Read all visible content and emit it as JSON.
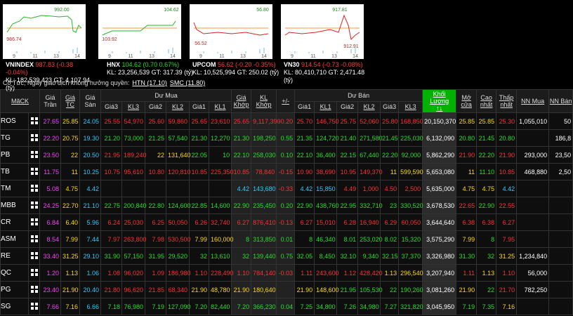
{
  "indices": [
    {
      "name": "VNINDEX",
      "quote": "987.83 (-0.38 -0.04%)",
      "color": "#ff3b3b",
      "volume": "KL: 182,539,423",
      "value": "GT: 4,107.94 (tỷ)",
      "chart_high": "992.00",
      "chart_low": "986.74"
    },
    {
      "name": "HNX",
      "quote": "104.62 (0.70 0.67%)",
      "color": "#22dd22",
      "volume": "KL: 23,256,539",
      "value": "GT: 317.39 (tỷ)",
      "chart_high": "104.62",
      "chart_low": "103.92"
    },
    {
      "name": "UPCOM",
      "quote": "56.62 (-0.20 -0.35%)",
      "color": "#ff3b3b",
      "volume": "KL: 10,525,994",
      "value": "GT: 250.02 (tỷ)",
      "chart_high": "56.80",
      "chart_low": "56.52"
    },
    {
      "name": "VN30",
      "quote": "914.54 (-0.73 -0.08%)",
      "color": "#ff3b3b",
      "volume": "KL: 80,410,710",
      "value": "GT: 2,471.48 (tỷ)",
      "chart_high": "917.81",
      "chart_low": "912.91"
    }
  ],
  "chart_ticks": [
    "9",
    "11",
    "13",
    "14"
  ],
  "notice": {
    "label": "Cổ Tức, Ngày giao dịch không hưởng quyền:",
    "links": [
      "HTN (17.10)",
      "SMC (11.80)"
    ]
  },
  "table": {
    "header": {
      "ticker": "MãCK",
      "ceiling": "Giá Trần",
      "reference": "Giá TC",
      "floor": "Giá Sàn",
      "buy": "Dư Mua",
      "sell": "Dư Bán",
      "buy_columns": [
        "Giá3",
        "KL3",
        "Giá2",
        "KL2",
        "Giá1",
        "KL1"
      ],
      "match_columns": [
        "Giá Khớp",
        "KL Khớp",
        "+/-"
      ],
      "sell_columns": [
        "Giá1",
        "KL1",
        "Giá2",
        "KL2",
        "Giá3",
        "KL3"
      ],
      "total": "Khối Lượng",
      "sort": "↑↓",
      "stat_columns": [
        "Mở cửa",
        "Cao nhất",
        "Thấp nhất",
        "NN Mua",
        "NN Bán"
      ]
    },
    "rows": [
      [
        "ROS",
        "27.65",
        "25.85",
        "24.05",
        "25.55",
        "54,970",
        "25.60",
        "59,860",
        "25.65",
        "23,610",
        "25.65",
        "9,117,390",
        "-0.20",
        "25.70",
        "146,750",
        "25.75",
        "52,060",
        "25.80",
        "168,850",
        "20,150,370",
        "25.85",
        "25.85",
        "25.30",
        "1,055,010",
        "50"
      ],
      [
        "TG",
        "22.20",
        "20.75",
        "19.30",
        "21.20",
        "73,000",
        "21.25",
        "57,540",
        "21.30",
        "12,270",
        "21.30",
        "198,250",
        "0.55",
        "21.35",
        "124,720",
        "21.40",
        "271,580",
        "21.45",
        "225,030",
        "6,132,090",
        "20.80",
        "21.45",
        "20.80",
        null,
        "186,8"
      ],
      [
        "PB",
        "23.50",
        "22",
        "20.50",
        "21.95",
        "189,240",
        "22",
        "131,640",
        "22.05",
        "10",
        "22.10",
        "258,030",
        "0.10",
        "22.10",
        "36,400",
        "22.15",
        "67,440",
        "22.20",
        "92,000",
        "5,862,290",
        "21.90",
        "22.20",
        "21.90",
        "293,000",
        "23,50"
      ],
      [
        "TB",
        "11.75",
        "11",
        "10.25",
        "10.75",
        "95,610",
        "10.80",
        "120,810",
        "10.85",
        "225,350",
        "10.85",
        "78,840",
        "-0.15",
        "10.90",
        "38,690",
        "10.95",
        "149,370",
        "11",
        "599,590",
        "5,653,080",
        "11",
        "11.10",
        "10.85",
        "468,880",
        "2,50"
      ],
      [
        "TM",
        "5.08",
        "4.75",
        "4.42",
        null,
        null,
        null,
        null,
        null,
        null,
        "4.42",
        "143,680",
        "-0.33",
        "4.42",
        "15,850",
        "4.49",
        "1,000",
        "4.50",
        "2,500",
        "5,635,000",
        "4.75",
        "4.75",
        "4.42",
        null,
        null
      ],
      [
        "MBB",
        "24.25",
        "22.70",
        "21.10",
        "22.75",
        "200,840",
        "22.80",
        "124,600",
        "22.85",
        "14,600",
        "22.90",
        "235,450",
        "0.20",
        "22.90",
        "438,760",
        "22.95",
        "332,710",
        "23",
        "330,520",
        "3,678,530",
        "22.65",
        "22.90",
        "22.55",
        null,
        null
      ],
      [
        "CR",
        "6.84",
        "6.40",
        "5.96",
        "6.24",
        "25,030",
        "6.25",
        "50,050",
        "6.26",
        "32,740",
        "6.27",
        "876,410",
        "-0.13",
        "6.27",
        "15,010",
        "6.28",
        "16,940",
        "6.29",
        "60,050",
        "3,644,640",
        "6.38",
        "6.38",
        "6.27",
        null,
        null
      ],
      [
        "ASM",
        "8.54",
        "7.99",
        "7.44",
        "7.97",
        "263,800",
        "7.98",
        "530,500",
        "7.99",
        "160,000",
        "8",
        "313,850",
        "0.01",
        "8",
        "46,340",
        "8.01",
        "253,020",
        "8.02",
        "15,320",
        "3,575,290",
        "7.99",
        "8",
        "7.95",
        null,
        null
      ],
      [
        "RE",
        "33.40",
        "31.25",
        "29.10",
        "31.90",
        "57,150",
        "31.95",
        "29,520",
        "32",
        "13,610",
        "32",
        "139,440",
        "0.75",
        "32.05",
        "8,450",
        "32.10",
        "9,340",
        "32.15",
        "37,370",
        "3,326,980",
        "31.30",
        "32",
        "31.25",
        "1,234,840",
        null
      ],
      [
        "QC",
        "1.20",
        "1.13",
        "1.06",
        "1.08",
        "96,020",
        "1.09",
        "186,980",
        "1.10",
        "228,490",
        "1.10",
        "784,140",
        "-0.03",
        "1.11",
        "243,600",
        "1.12",
        "428,420",
        "1.13",
        "296,540",
        "3,207,940",
        "1.11",
        "1.13",
        "1.10",
        "56,000",
        null
      ],
      [
        "PG",
        "23.40",
        "21.90",
        "20.40",
        "21.80",
        "96,620",
        "21.85",
        "68,340",
        "21.90",
        "48,780",
        "21.90",
        "180,640",
        null,
        "21.90",
        "148,600",
        "21.95",
        "105,530",
        "22",
        "190,260",
        "3,081,260",
        "21.90",
        "22",
        "21.70",
        "782,250",
        null
      ],
      [
        "SG",
        "7.66",
        "7.16",
        "6.66",
        "7.18",
        "76,980",
        "7.19",
        "127,090",
        "7.20",
        "82,440",
        "7.20",
        "366,230",
        "0.04",
        "7.25",
        "34,800",
        "7.26",
        "34,980",
        "7.27",
        "321,820",
        "3,045,950",
        "7.19",
        "7.35",
        "7.16",
        null,
        null
      ]
    ]
  }
}
